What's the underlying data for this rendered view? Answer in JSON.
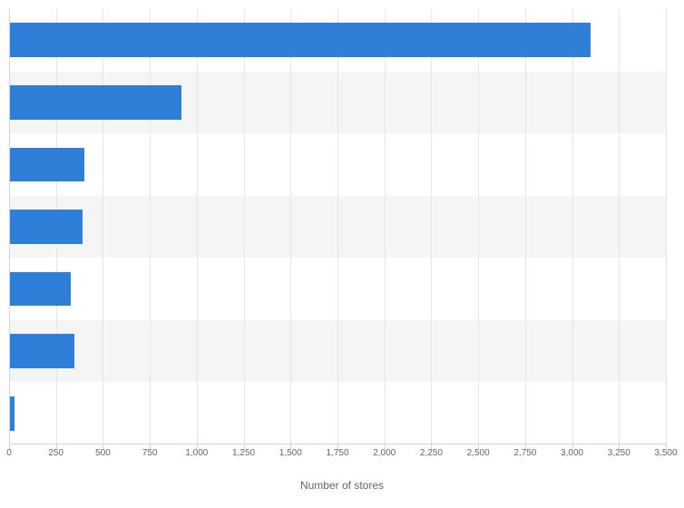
{
  "chart": {
    "type": "bar",
    "orientation": "horizontal",
    "values": [
      3100,
      920,
      400,
      390,
      330,
      350,
      30
    ],
    "bar_color": "#2f7ed8",
    "background_color": "#ffffff",
    "band_color": "#f5f5f5",
    "grid_color": "#e6e6e6",
    "axis_line_color": "#ccd6eb",
    "xlabel": "Number of stores",
    "label_fontsize": 12,
    "label_color": "#666666",
    "tick_fontsize": 10,
    "tick_color": "#666666",
    "xlim": [
      0,
      3500
    ],
    "xtick_step": 250,
    "xticks": [
      0,
      250,
      500,
      750,
      1000,
      1250,
      1500,
      1750,
      2000,
      2250,
      2500,
      2750,
      3000,
      3250,
      3500
    ],
    "xtick_labels": [
      "0",
      "250",
      "500",
      "750",
      "1,000",
      "1,250",
      "1,500",
      "1,750",
      "2,000",
      "2,250",
      "2,500",
      "2,750",
      "3,000",
      "3,250",
      "3,500"
    ],
    "bar_width_ratio": 0.55,
    "num_categories": 7
  }
}
